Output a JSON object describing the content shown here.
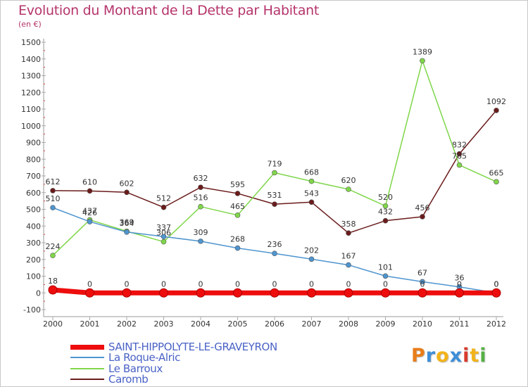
{
  "title": "Evolution du Montant de la Dette par Habitant",
  "subtitle": "(en €)",
  "logo": {
    "text": "Proxiti",
    "colors": [
      "#e87d1a",
      "#3e8ed8",
      "#f2b31a",
      "#3e8ed8",
      "#d83a2a",
      "#f2b31a",
      "#56b046"
    ]
  },
  "chart_data": {
    "type": "line",
    "x": [
      "2000",
      "2001",
      "2002",
      "2003",
      "2004",
      "2005",
      "2006",
      "2007",
      "2008",
      "2009",
      "2010",
      "2011",
      "2012"
    ],
    "ylim": [
      -100,
      1500
    ],
    "yticks": [
      "-100",
      "0",
      "100",
      "200",
      "300",
      "400",
      "500",
      "600",
      "700",
      "800",
      "900",
      "1000",
      "1100",
      "1200",
      "1300",
      "1400",
      "1500"
    ],
    "grid": false,
    "series": [
      {
        "name": "Caromb",
        "color": "#6b1b1b",
        "width": 1.5,
        "values": [
          612,
          610,
          602,
          512,
          632,
          595,
          531,
          543,
          358,
          432,
          456,
          832,
          1092
        ],
        "labels": [
          "612",
          "610",
          "602",
          "512",
          "632",
          "595",
          "531",
          "543",
          "358",
          "432",
          "456",
          "832",
          "1092"
        ]
      },
      {
        "name": "Le Barroux",
        "color": "#7fd64a",
        "width": 1.5,
        "values": [
          224,
          437,
          369,
          306,
          516,
          465,
          719,
          668,
          620,
          520,
          1389,
          765,
          665
        ],
        "labels": [
          "224",
          "437",
          "369",
          "306",
          "516",
          "465",
          "719",
          "668",
          "620",
          "520",
          "1389",
          "765",
          "665"
        ]
      },
      {
        "name": "La Roque-Alric",
        "color": "#4f95cf",
        "width": 1.5,
        "values": [
          510,
          426,
          364,
          337,
          309,
          268,
          236,
          202,
          167,
          101,
          67,
          36,
          0
        ],
        "labels": [
          "510",
          "426",
          "364",
          "337",
          "309",
          "268",
          "236",
          "202",
          "167",
          "101",
          "67",
          "36",
          "0"
        ]
      },
      {
        "name": "SAINT-HIPPOLYTE-LE-GRAVEYRON",
        "color": "#ee0d0d",
        "width": 7,
        "values": [
          18,
          0,
          0,
          0,
          0,
          0,
          0,
          0,
          0,
          0,
          0,
          0,
          0
        ],
        "labels": [
          "18",
          "0",
          "0",
          "0",
          "0",
          "0",
          "0",
          "0",
          "0",
          "0",
          "0",
          "0",
          "0"
        ]
      }
    ],
    "legend": [
      "SAINT-HIPPOLYTE-LE-GRAVEYRON",
      "La Roque-Alric",
      "Le Barroux",
      "Caromb"
    ],
    "legend_colors": [
      "#ee0d0d",
      "#4f95cf",
      "#7fd64a",
      "#6b1b1b"
    ],
    "legend_placement": "bottom-left"
  }
}
